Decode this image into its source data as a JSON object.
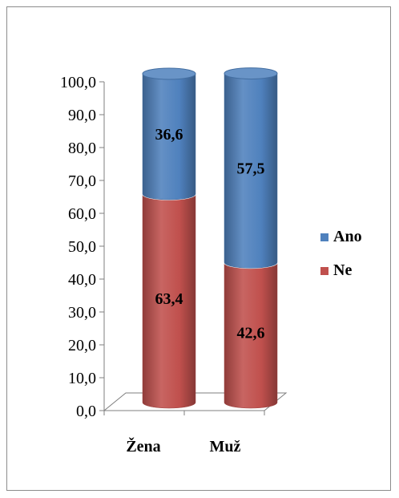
{
  "chart_data": {
    "type": "bar",
    "stacked": true,
    "three_d": true,
    "categories": [
      "Žena",
      "Muž"
    ],
    "series": [
      {
        "name": "Ne",
        "values": [
          63.4,
          42.6
        ],
        "labels": [
          "63,4",
          "42,6"
        ],
        "color": "#c0504d"
      },
      {
        "name": "Ano",
        "values": [
          36.6,
          57.5
        ],
        "labels": [
          "36,6",
          "57,5"
        ],
        "color": "#4f81bd"
      }
    ],
    "ylim": [
      0,
      100
    ],
    "yticks": [
      0,
      10,
      20,
      30,
      40,
      50,
      60,
      70,
      80,
      90,
      100
    ],
    "ytick_labels": [
      "0,0",
      "10,0",
      "20,0",
      "30,0",
      "40,0",
      "50,0",
      "60,0",
      "70,0",
      "80,0",
      "90,0",
      "100,0"
    ],
    "legend": {
      "position": "right",
      "order": [
        "Ano",
        "Ne"
      ]
    },
    "grid": false,
    "title": "",
    "xlabel": "",
    "ylabel": ""
  }
}
